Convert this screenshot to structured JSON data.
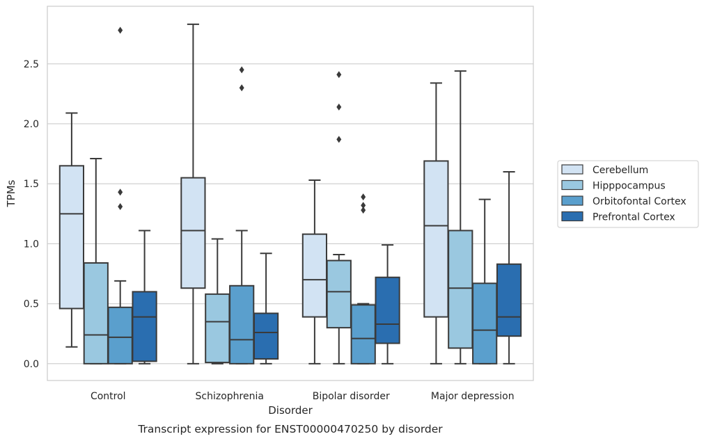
{
  "chart_data": {
    "type": "box",
    "xlabel": "Disorder",
    "ylabel": "TPMs",
    "caption": "Transcript expression for ENST00000470250 by disorder",
    "ylim": [
      -0.14,
      2.98
    ],
    "yticks": [
      "0.0",
      "0.5",
      "1.0",
      "1.5",
      "2.0",
      "2.5"
    ],
    "ytick_values": [
      0.0,
      0.5,
      1.0,
      1.5,
      2.0,
      2.5
    ],
    "grid": "horizontal",
    "legend_position": "right",
    "categories": [
      "Control",
      "Schizophrenia",
      "Bipolar disorder",
      "Major depression"
    ],
    "series": [
      {
        "name": "Cerebellum",
        "color": "#d2e3f3",
        "boxes": [
          {
            "whislo": 0.14,
            "q1": 0.46,
            "med": 1.25,
            "q3": 1.65,
            "whishi": 2.09,
            "fliers": []
          },
          {
            "whislo": 0.0,
            "q1": 0.63,
            "med": 1.11,
            "q3": 1.55,
            "whishi": 2.83,
            "fliers": []
          },
          {
            "whislo": 0.0,
            "q1": 0.39,
            "med": 0.7,
            "q3": 1.08,
            "whishi": 1.53,
            "fliers": []
          },
          {
            "whislo": 0.0,
            "q1": 0.39,
            "med": 1.15,
            "q3": 1.69,
            "whishi": 2.34,
            "fliers": []
          }
        ]
      },
      {
        "name": "Hipppocampus",
        "color": "#9ac8e0",
        "boxes": [
          {
            "whislo": 0.0,
            "q1": 0.0,
            "med": 0.24,
            "q3": 0.84,
            "whishi": 1.71,
            "fliers": []
          },
          {
            "whislo": 0.0,
            "q1": 0.01,
            "med": 0.35,
            "q3": 0.58,
            "whishi": 1.04,
            "fliers": []
          },
          {
            "whislo": 0.0,
            "q1": 0.3,
            "med": 0.6,
            "q3": 0.86,
            "whishi": 0.91,
            "fliers": [
              1.87,
              2.14,
              2.41
            ]
          },
          {
            "whislo": 0.0,
            "q1": 0.13,
            "med": 0.63,
            "q3": 1.11,
            "whishi": 2.44,
            "fliers": []
          }
        ]
      },
      {
        "name": "Orbitofontal Cortex",
        "color": "#5a9fcd",
        "boxes": [
          {
            "whislo": 0.0,
            "q1": 0.0,
            "med": 0.22,
            "q3": 0.47,
            "whishi": 0.69,
            "fliers": [
              1.31,
              1.43,
              2.78
            ]
          },
          {
            "whislo": 0.0,
            "q1": 0.0,
            "med": 0.2,
            "q3": 0.65,
            "whishi": 1.11,
            "fliers": [
              2.3,
              2.45
            ]
          },
          {
            "whislo": 0.0,
            "q1": 0.0,
            "med": 0.21,
            "q3": 0.49,
            "whishi": 0.5,
            "fliers": [
              1.28,
              1.32,
              1.39
            ]
          },
          {
            "whislo": 0.0,
            "q1": 0.0,
            "med": 0.28,
            "q3": 0.67,
            "whishi": 1.37,
            "fliers": []
          }
        ]
      },
      {
        "name": "Prefrontal Cortex",
        "color": "#2a6eb0",
        "boxes": [
          {
            "whislo": 0.0,
            "q1": 0.02,
            "med": 0.39,
            "q3": 0.6,
            "whishi": 1.11,
            "fliers": []
          },
          {
            "whislo": 0.0,
            "q1": 0.04,
            "med": 0.26,
            "q3": 0.42,
            "whishi": 0.92,
            "fliers": []
          },
          {
            "whislo": 0.0,
            "q1": 0.17,
            "med": 0.33,
            "q3": 0.72,
            "whishi": 0.99,
            "fliers": []
          },
          {
            "whislo": 0.0,
            "q1": 0.23,
            "med": 0.39,
            "q3": 0.83,
            "whishi": 1.6,
            "fliers": []
          }
        ]
      }
    ]
  }
}
